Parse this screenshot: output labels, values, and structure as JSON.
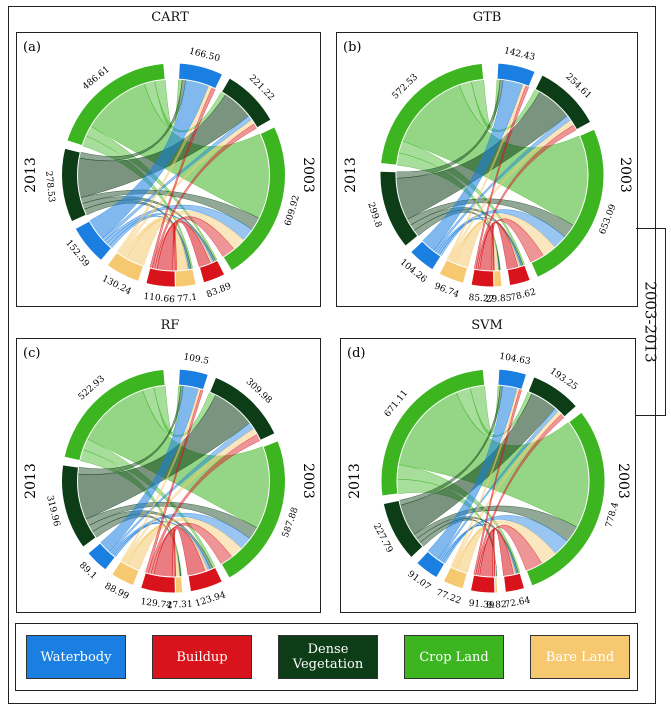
{
  "side_label": "2003-2013",
  "legend": [
    {
      "key": "waterbody",
      "label": "Waterbody",
      "color": "#1a7fe0",
      "text_color": "#ffffff"
    },
    {
      "key": "buildup",
      "label": "Buildup",
      "color": "#d9131b",
      "text_color": "#ffffff"
    },
    {
      "key": "dense",
      "label": "Dense Vegetation",
      "color": "#0d3d17",
      "text_color": "#ffffff"
    },
    {
      "key": "crop",
      "label": "Crop Land",
      "color": "#3cb521",
      "text_color": "#ffffff"
    },
    {
      "key": "bare",
      "label": "Bare Land",
      "color": "#f6c970",
      "text_color": "#ffffff"
    }
  ],
  "chart_data": [
    {
      "type": "chord",
      "title": "CART",
      "panel_label": "(a)",
      "group_labels": {
        "left": "2013",
        "right": "2003"
      },
      "values_2013": {
        "waterbody": 152.59,
        "buildup": 110.66,
        "dense": 278.53,
        "crop": 486.61,
        "bare": 130.24
      },
      "values_2003": {
        "waterbody": 166.5,
        "buildup": 83.89,
        "dense": 221.22,
        "crop": 609.92,
        "bare": 77.1
      },
      "value_labels": {
        "waterbody_2013": "152.59",
        "buildup_2013": "110.66",
        "dense_2013": "278.53",
        "crop_2013": "486.61",
        "bare_2013": "130.24",
        "waterbody_2003": "166.50",
        "buildup_2003": "83.89",
        "dense_2003": "221.22",
        "crop_2003": "609.92",
        "bare_2003": "77.1"
      }
    },
    {
      "type": "chord",
      "title": "GTB",
      "panel_label": "(b)",
      "group_labels": {
        "left": "2013",
        "right": "2003"
      },
      "values_2013": {
        "waterbody": 104.26,
        "buildup": 85.27,
        "dense": 299.8,
        "crop": 572.53,
        "bare": 96.74
      },
      "values_2003": {
        "waterbody": 142.43,
        "buildup": 78.62,
        "dense": 254.61,
        "crop": 653.09,
        "bare": 29.85
      },
      "value_labels": {
        "waterbody_2013": "104.26",
        "buildup_2013": "85.27",
        "dense_2013": "299.8",
        "crop_2013": "572.53",
        "bare_2013": "96.74",
        "waterbody_2003": "142.43",
        "buildup_2003": "78.62",
        "dense_2003": "254.61",
        "crop_2003": "653.09",
        "bare_2003": "29.85"
      }
    },
    {
      "type": "chord",
      "title": "RF",
      "panel_label": "(c)",
      "group_labels": {
        "left": "2013",
        "right": "2003"
      },
      "values_2013": {
        "waterbody": 89.1,
        "buildup": 129.74,
        "dense": 319.96,
        "crop": 522.93,
        "bare": 88.99
      },
      "values_2003": {
        "waterbody": 109.5,
        "buildup": 123.94,
        "dense": 309.98,
        "crop": 587.88,
        "bare": 27.31
      },
      "value_labels": {
        "waterbody_2013": "89.1",
        "buildup_2013": "129.74",
        "dense_2013": "319.96",
        "crop_2013": "522.93",
        "bare_2013": "88.99",
        "waterbody_2003": "109.5",
        "buildup_2003": "123.94",
        "dense_2003": "309.98",
        "crop_2003": "587.88",
        "bare_2003": "27.31"
      }
    },
    {
      "type": "chord",
      "title": "SVM",
      "panel_label": "(d)",
      "group_labels": {
        "left": "2013",
        "right": "2003"
      },
      "values_2013": {
        "waterbody": 91.07,
        "buildup": 91.39,
        "dense": 227.79,
        "crop": 671.11,
        "bare": 77.22
      },
      "values_2003": {
        "waterbody": 104.63,
        "buildup": 72.64,
        "dense": 193.25,
        "crop": 778.4,
        "bare": 9.82
      },
      "value_labels": {
        "waterbody_2013": "91.07",
        "buildup_2013": "91.39",
        "dense_2013": "227.79",
        "crop_2013": "671.11",
        "bare_2013": "77.22",
        "waterbody_2003": "104.63",
        "buildup_2003": "72.64",
        "dense_2003": "193.25",
        "crop_2003": "778.4",
        "bare_2003": "9.82"
      }
    }
  ]
}
